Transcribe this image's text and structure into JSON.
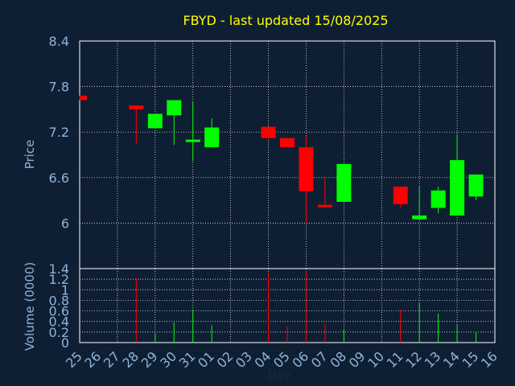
{
  "chart_data": [
    {
      "type": "candlestick",
      "title": "FBYD - last updated 15/08/2025",
      "ylabel": "Price",
      "ylim": [
        5.4,
        8.4
      ],
      "yticks": [
        "8.4",
        "7.8",
        "7.2",
        "6.6",
        "6"
      ],
      "grid": true,
      "colors": {
        "up": "#00ff00",
        "down": "#ff0000",
        "title": "#ffff00",
        "axis_text": "#8fb3d9",
        "grid": "#ffffff"
      },
      "candles": [
        {
          "day": "25",
          "open": 7.68,
          "close": 7.62,
          "high": 7.68,
          "low": 7.62
        },
        {
          "day": "28",
          "open": 7.55,
          "close": 7.5,
          "high": 7.55,
          "low": 7.05
        },
        {
          "day": "29",
          "open": 7.25,
          "close": 7.44,
          "high": 7.44,
          "low": 7.25
        },
        {
          "day": "30",
          "open": 7.42,
          "close": 7.62,
          "high": 7.62,
          "low": 7.03
        },
        {
          "day": "31",
          "open": 7.07,
          "close": 7.1,
          "high": 7.6,
          "low": 6.82
        },
        {
          "day": "01",
          "open": 7.0,
          "close": 7.26,
          "high": 7.38,
          "low": 7.0
        },
        {
          "day": "04",
          "open": 7.27,
          "close": 7.12,
          "high": 7.27,
          "low": 7.12
        },
        {
          "day": "05",
          "open": 7.12,
          "close": 7.0,
          "high": 7.12,
          "low": 7.0
        },
        {
          "day": "06",
          "open": 7.0,
          "close": 6.42,
          "high": 7.15,
          "low": 6.0
        },
        {
          "day": "07",
          "open": 6.24,
          "close": 6.22,
          "high": 6.6,
          "low": 6.22
        },
        {
          "day": "08",
          "open": 6.28,
          "close": 6.78,
          "high": 6.78,
          "low": 6.28
        },
        {
          "day": "11",
          "open": 6.48,
          "close": 6.25,
          "high": 6.48,
          "low": 6.2
        },
        {
          "day": "12",
          "open": 6.05,
          "close": 6.1,
          "high": 6.48,
          "low": 6.05
        },
        {
          "day": "13",
          "open": 6.2,
          "close": 6.43,
          "high": 6.48,
          "low": 6.13
        },
        {
          "day": "14",
          "open": 6.1,
          "close": 6.83,
          "high": 7.17,
          "low": 6.1
        },
        {
          "day": "15",
          "open": 6.35,
          "close": 6.64,
          "high": 6.64,
          "low": 6.3
        }
      ]
    },
    {
      "type": "bar",
      "ylabel": "Volume (0000)",
      "xlabel": "Day",
      "ylim": [
        0,
        1.4
      ],
      "yticks": [
        "1.4",
        "1.2",
        "1",
        "0.8",
        "0.6",
        "0.4",
        "0.2",
        "0"
      ],
      "categories": [
        "25",
        "26",
        "27",
        "28",
        "29",
        "30",
        "31",
        "01",
        "02",
        "03",
        "04",
        "05",
        "06",
        "07",
        "08",
        "09",
        "10",
        "11",
        "12",
        "13",
        "14",
        "15",
        "16"
      ],
      "bars": [
        {
          "day": "28",
          "value": 1.22,
          "dir": "down"
        },
        {
          "day": "29",
          "value": 0.18,
          "dir": "up"
        },
        {
          "day": "30",
          "value": 0.38,
          "dir": "up"
        },
        {
          "day": "31",
          "value": 0.62,
          "dir": "up"
        },
        {
          "day": "01",
          "value": 0.33,
          "dir": "up"
        },
        {
          "day": "04",
          "value": 1.32,
          "dir": "down"
        },
        {
          "day": "05",
          "value": 0.3,
          "dir": "down"
        },
        {
          "day": "06",
          "value": 1.35,
          "dir": "down"
        },
        {
          "day": "07",
          "value": 0.35,
          "dir": "down"
        },
        {
          "day": "08",
          "value": 0.25,
          "dir": "up"
        },
        {
          "day": "11",
          "value": 0.62,
          "dir": "down"
        },
        {
          "day": "12",
          "value": 0.76,
          "dir": "up"
        },
        {
          "day": "13",
          "value": 0.55,
          "dir": "up"
        },
        {
          "day": "14",
          "value": 0.34,
          "dir": "up"
        },
        {
          "day": "15",
          "value": 0.2,
          "dir": "up"
        }
      ]
    }
  ]
}
